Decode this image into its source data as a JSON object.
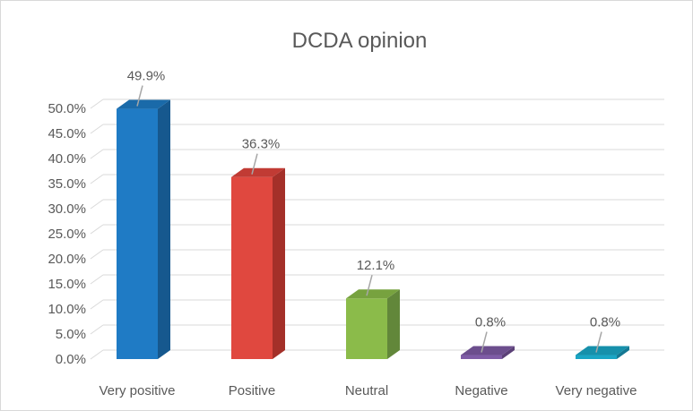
{
  "chart_data": {
    "type": "bar",
    "title": "DCDA opinion",
    "categories": [
      "Very positive",
      "Positive",
      "Neutral",
      "Negative",
      "Very negative"
    ],
    "values": [
      49.9,
      36.3,
      12.1,
      0.8,
      0.8
    ],
    "data_labels": [
      "49.9%",
      "36.3%",
      "12.1%",
      "0.8%",
      "0.8%"
    ],
    "y_ticks": [
      "0.0%",
      "5.0%",
      "10.0%",
      "15.0%",
      "20.0%",
      "25.0%",
      "30.0%",
      "35.0%",
      "40.0%",
      "45.0%",
      "50.0%"
    ],
    "ylim": [
      0,
      50
    ],
    "grid": true,
    "legend": "none",
    "style": "3d",
    "colors": [
      "#1f7bc5",
      "#e0483f",
      "#8bbb4a",
      "#7f5ca6",
      "#1aa5c4"
    ],
    "colors_side": [
      "#16588e",
      "#a43029",
      "#62873a",
      "#5b4077",
      "#147893"
    ],
    "colors_top": [
      "#1a6aa9",
      "#c13b34",
      "#77a23f",
      "#6c4e8d",
      "#1690ab"
    ]
  }
}
